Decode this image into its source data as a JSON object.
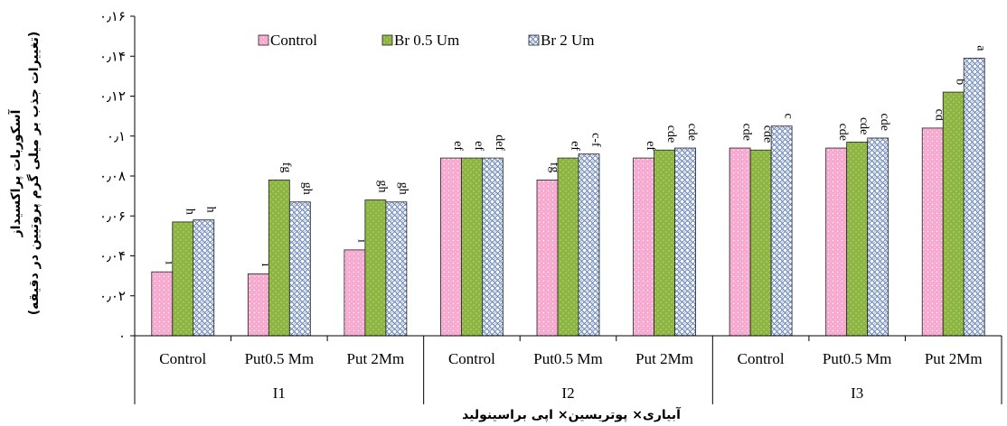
{
  "chart_data": {
    "type": "bar",
    "ylabel_line1": "آسکوربات پراکسیداز",
    "ylabel_line2": "(تغییرات جذب بر میلی گرم پروتیین در دقیقه)",
    "xlabel": "آبیاری× پوتریسین× اپی براسینولید",
    "ylim": [
      0,
      0.16
    ],
    "yticks": [
      "۰",
      "۰٫۰۲",
      "۰٫۰۴",
      "۰٫۰۶",
      "۰٫۰۸",
      "۰٫۱",
      "۰٫۱۲",
      "۰٫۱۴",
      "۰٫۱۶"
    ],
    "groups": [
      "I1",
      "I2",
      "I3"
    ],
    "categories": [
      "Control",
      "Put0.5 Mm",
      "Put 2Mm",
      "Control",
      "Put0.5 Mm",
      "Put 2Mm",
      "Control",
      "Put0.5 Mm",
      "Put 2Mm"
    ],
    "legend_position": "top",
    "series": [
      {
        "name": "Control",
        "color": "#f7a8cf",
        "pattern": "dots",
        "values": [
          0.032,
          0.031,
          0.043,
          0.089,
          0.078,
          0.089,
          0.094,
          0.094,
          0.104
        ],
        "labels": [
          "i",
          "i",
          "i",
          "ef",
          "fg",
          "ef",
          "cde",
          "cde",
          "cd"
        ]
      },
      {
        "name": "Br 0.5 Um",
        "color": "#8db542",
        "pattern": "dots",
        "values": [
          0.057,
          0.078,
          0.068,
          0.089,
          0.089,
          0.093,
          0.093,
          0.097,
          0.122
        ],
        "labels": [
          "h",
          "fg",
          "gh",
          "ef",
          "ef",
          "cde",
          "cde",
          "cde",
          "b"
        ]
      },
      {
        "name": "Br 2 Um",
        "color": "#9fb4d6",
        "pattern": "weave",
        "values": [
          0.058,
          0.067,
          0.067,
          0.089,
          0.091,
          0.094,
          0.105,
          0.099,
          0.139
        ],
        "labels": [
          "h",
          "gh",
          "gh",
          "def",
          "c-f",
          "cde",
          "c",
          "cde",
          "a"
        ]
      }
    ]
  }
}
